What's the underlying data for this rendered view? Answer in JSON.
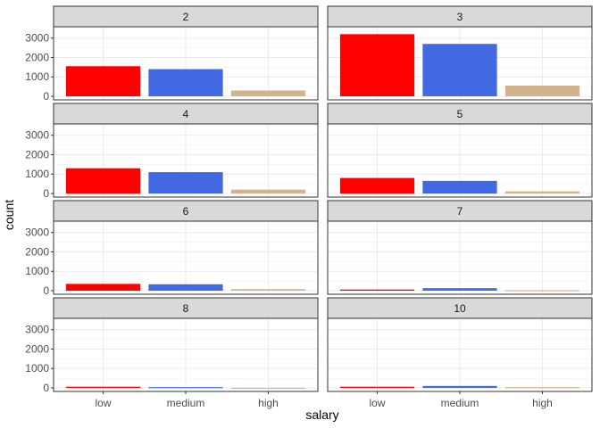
{
  "chart_data": {
    "type": "bar",
    "xlabel": "salary",
    "ylabel": "count",
    "categories": [
      "low",
      "medium",
      "high"
    ],
    "colors": {
      "low": "#ff0000",
      "medium": "#4169e1",
      "high": "#d2b48c"
    },
    "ylim": [
      0,
      3400
    ],
    "yticks": [
      0,
      1000,
      2000,
      3000
    ],
    "grid": true,
    "facets": [
      {
        "label": "2",
        "values": [
          1550,
          1400,
          300
        ]
      },
      {
        "label": "3",
        "values": [
          3200,
          2700,
          550
        ]
      },
      {
        "label": "4",
        "values": [
          1300,
          1100,
          200
        ]
      },
      {
        "label": "5",
        "values": [
          800,
          650,
          110
        ]
      },
      {
        "label": "6",
        "values": [
          350,
          330,
          80
        ]
      },
      {
        "label": "7",
        "values": [
          60,
          130,
          25
        ]
      },
      {
        "label": "8",
        "values": [
          60,
          40,
          5
        ]
      },
      {
        "label": "10",
        "values": [
          60,
          100,
          40
        ]
      }
    ]
  }
}
